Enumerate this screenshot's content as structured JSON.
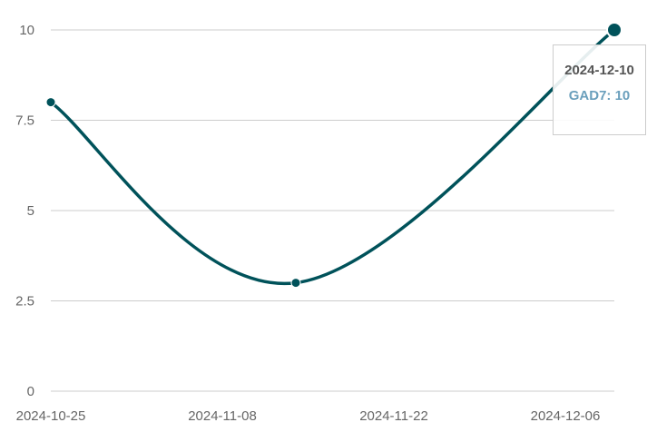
{
  "chart_data": {
    "type": "line",
    "x_type": "date",
    "x": [
      "2024-10-25",
      "2024-11-14",
      "2024-12-10"
    ],
    "series": [
      {
        "name": "GAD7",
        "values": [
          8,
          3,
          10
        ],
        "color": "#00525a"
      }
    ],
    "ylim": [
      0,
      10
    ],
    "y_ticks": [
      "0",
      "2.5",
      "5",
      "7.5",
      "10"
    ],
    "x_tick_dates": [
      "2024-10-25",
      "2024-11-08",
      "2024-11-22",
      "2024-12-06"
    ],
    "x_range": [
      "2024-10-25",
      "2024-12-10"
    ],
    "grid": true,
    "curve": "smooth",
    "colors": {
      "line": "#00525a",
      "grid": "#cccccc",
      "tick_text": "#666666",
      "tooltip_value": "#6a9fbc"
    },
    "tooltip": {
      "date": "2024-12-10",
      "label": "GAD7: 10"
    }
  }
}
